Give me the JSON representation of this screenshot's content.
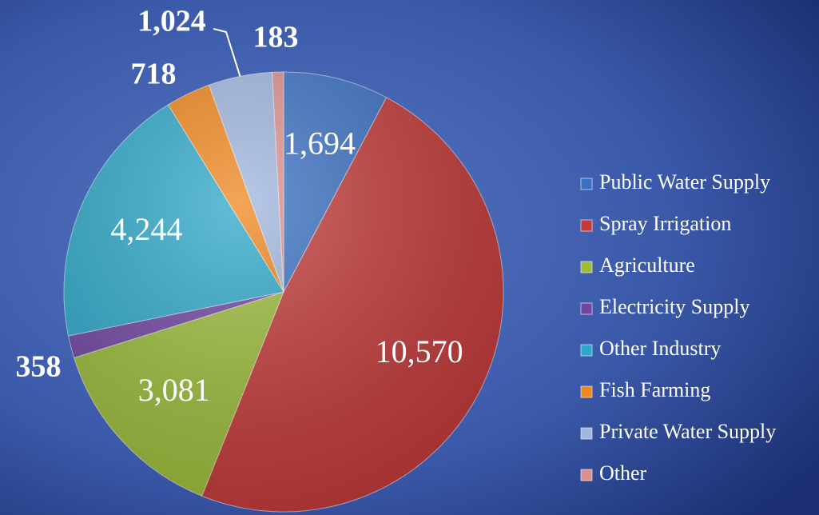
{
  "chart_data": {
    "type": "pie",
    "categories": [
      "Public Water Supply",
      "Spray Irrigation",
      "Agriculture",
      "Electricity Supply",
      "Other Industry",
      "Fish Farming",
      "Private Water Supply",
      "Other"
    ],
    "values": [
      1694,
      10570,
      3081,
      358,
      4244,
      718,
      1024,
      183
    ],
    "value_labels": [
      "1,694",
      "10,570",
      "3,081",
      "358",
      "4,244",
      "718",
      "1,024",
      "183"
    ],
    "colors": [
      "#3a70c2",
      "#c23a3a",
      "#9cbc3c",
      "#7046a2",
      "#2ea8c8",
      "#f0861e",
      "#a0b6de",
      "#dc9090"
    ],
    "legend": "right"
  }
}
